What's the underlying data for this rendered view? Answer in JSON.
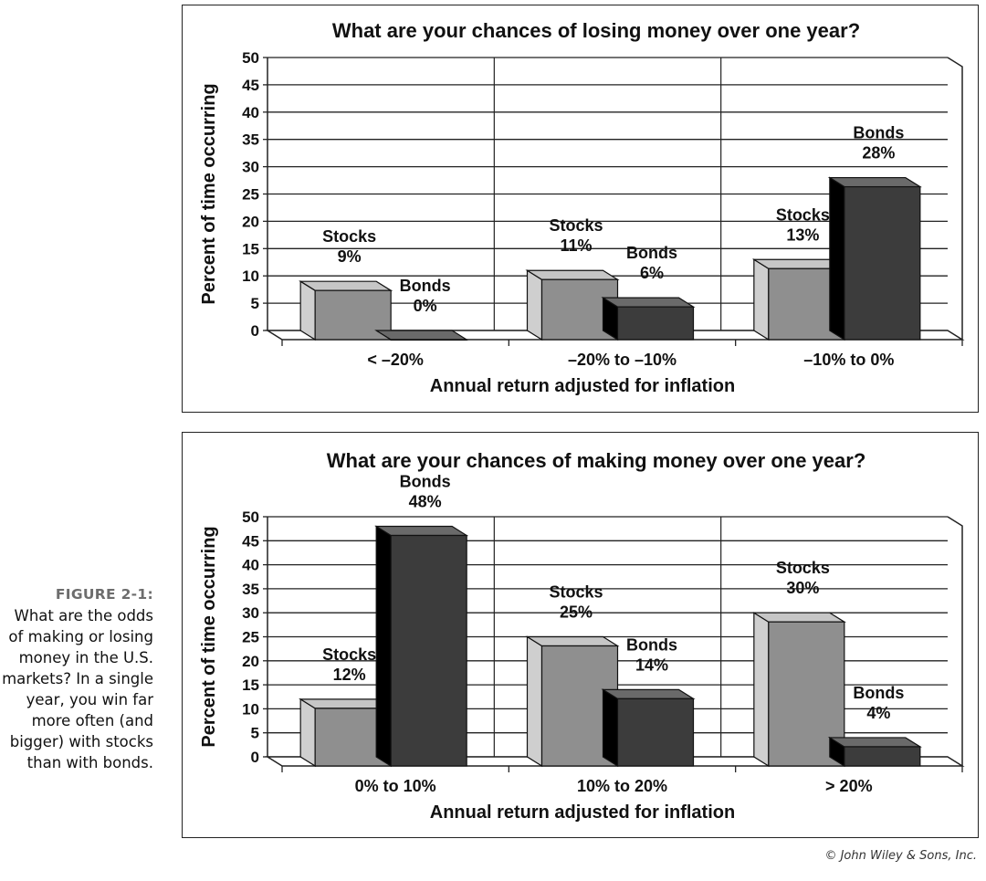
{
  "caption": {
    "label": "FIGURE 2-1:",
    "text": "What are the odds of making or losing money in the U.S. markets? In a single year, you win far more often (and bigger) with stocks than with bonds."
  },
  "copyright": "© John Wiley & Sons, Inc.",
  "colors": {
    "stocks": "#8f8f8f",
    "bonds": "#3c3c3c",
    "grid": "#222222"
  },
  "chart_data": [
    {
      "type": "bar",
      "title": "What are your chances of losing money over one year?",
      "xlabel": "Annual return adjusted for inflation",
      "ylabel": "Percent of time occurring",
      "ylim": [
        0,
        50
      ],
      "yticks": [
        0,
        5,
        10,
        15,
        20,
        25,
        30,
        35,
        40,
        45,
        50
      ],
      "categories": [
        "< –20%",
        "–20% to –10%",
        "–10% to 0%"
      ],
      "series": [
        {
          "name": "Stocks",
          "values": [
            9,
            11,
            13
          ],
          "labels": [
            "9%",
            "11%",
            "13%"
          ]
        },
        {
          "name": "Bonds",
          "values": [
            0,
            6,
            28
          ],
          "labels": [
            "0%",
            "6%",
            "28%"
          ]
        }
      ]
    },
    {
      "type": "bar",
      "title": "What are your chances of making money over one year?",
      "xlabel": "Annual return adjusted for inflation",
      "ylabel": "Percent of time occurring",
      "ylim": [
        0,
        50
      ],
      "yticks": [
        0,
        5,
        10,
        15,
        20,
        25,
        30,
        35,
        40,
        45,
        50
      ],
      "categories": [
        "0% to 10%",
        "10% to 20%",
        "> 20%"
      ],
      "series": [
        {
          "name": "Stocks",
          "values": [
            12,
            25,
            30
          ],
          "labels": [
            "12%",
            "25%",
            "30%"
          ]
        },
        {
          "name": "Bonds",
          "values": [
            48,
            14,
            4
          ],
          "labels": [
            "48%",
            "14%",
            "4%"
          ]
        }
      ]
    }
  ]
}
